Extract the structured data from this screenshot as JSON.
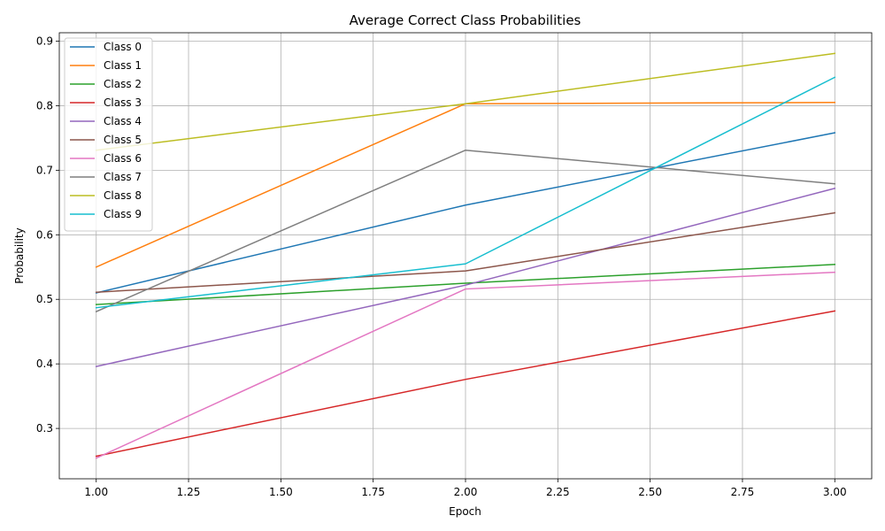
{
  "chart_data": {
    "type": "line",
    "title": "Average Correct Class Probabilities",
    "xlabel": "Epoch",
    "ylabel": "Probability",
    "x": [
      1,
      2,
      3
    ],
    "xlim": [
      0.9,
      3.1
    ],
    "ylim": [
      0.222,
      0.913
    ],
    "xticks": [
      1.0,
      1.25,
      1.5,
      1.75,
      2.0,
      2.25,
      2.5,
      2.75,
      3.0
    ],
    "xtick_labels": [
      "1.00",
      "1.25",
      "1.50",
      "1.75",
      "2.00",
      "2.25",
      "2.50",
      "2.75",
      "3.00"
    ],
    "yticks": [
      0.3,
      0.4,
      0.5,
      0.6,
      0.7,
      0.8,
      0.9
    ],
    "ytick_labels": [
      "0.3",
      "0.4",
      "0.5",
      "0.6",
      "0.7",
      "0.8",
      "0.9"
    ],
    "grid": true,
    "legend": "upper-left",
    "series": [
      {
        "name": "Class 0",
        "color": "#1f77b4",
        "values": [
          0.51,
          0.646,
          0.758
        ]
      },
      {
        "name": "Class 1",
        "color": "#ff7f0e",
        "values": [
          0.55,
          0.803,
          0.805
        ]
      },
      {
        "name": "Class 2",
        "color": "#2ca02c",
        "values": [
          0.492,
          0.525,
          0.554
        ]
      },
      {
        "name": "Class 3",
        "color": "#d62728",
        "values": [
          0.257,
          0.376,
          0.482
        ]
      },
      {
        "name": "Class 4",
        "color": "#9467bd",
        "values": [
          0.396,
          0.522,
          0.672
        ]
      },
      {
        "name": "Class 5",
        "color": "#8c564b",
        "values": [
          0.511,
          0.544,
          0.634
        ]
      },
      {
        "name": "Class 6",
        "color": "#e377c2",
        "values": [
          0.254,
          0.516,
          0.542
        ]
      },
      {
        "name": "Class 7",
        "color": "#7f7f7f",
        "values": [
          0.481,
          0.731,
          0.679
        ]
      },
      {
        "name": "Class 8",
        "color": "#bcbd22",
        "values": [
          0.731,
          0.803,
          0.881
        ]
      },
      {
        "name": "Class 9",
        "color": "#17becf",
        "values": [
          0.487,
          0.555,
          0.844
        ]
      }
    ]
  }
}
